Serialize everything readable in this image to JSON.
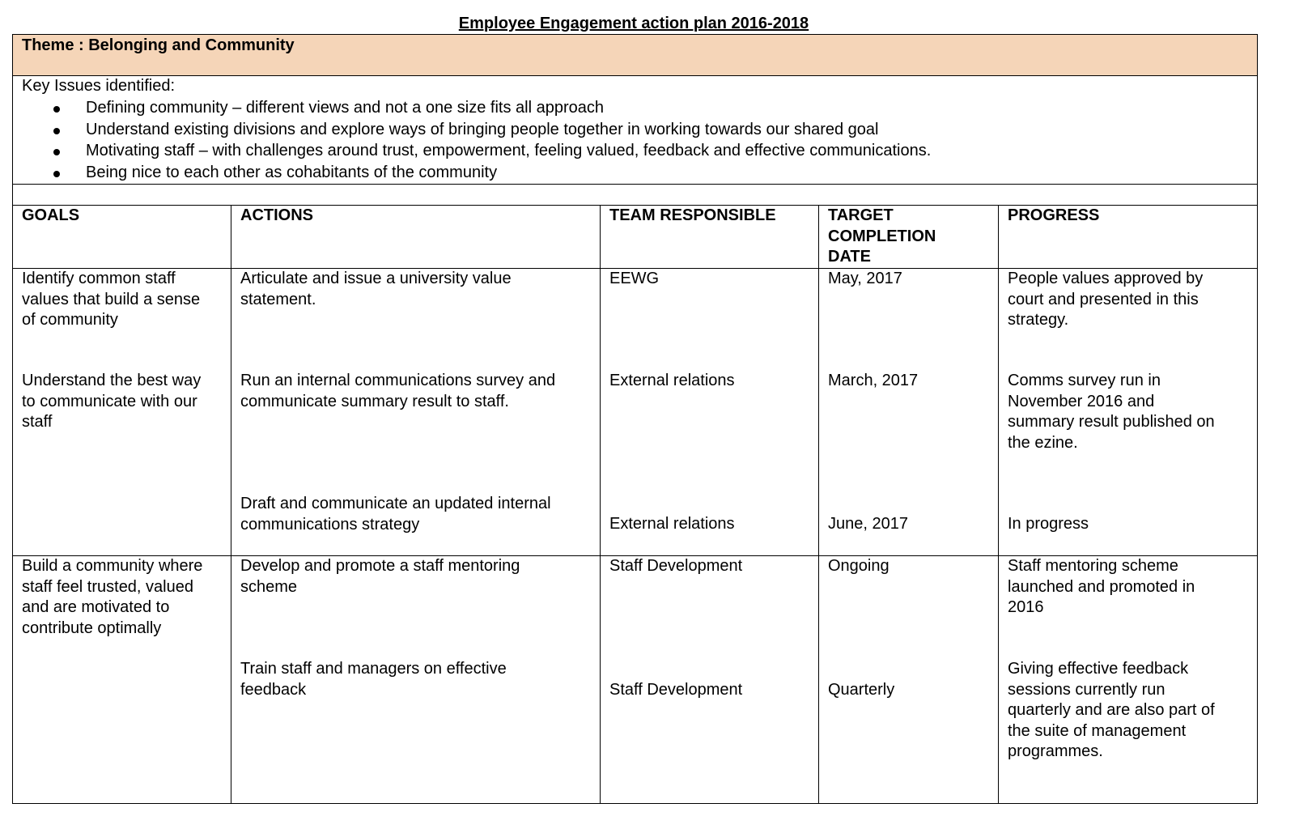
{
  "title": "Employee Engagement action plan 2016-2018",
  "theme": "Theme : Belonging and Community",
  "theme_color": "#f5d5b8",
  "key_issues": {
    "label": "Key Issues identified:",
    "items": [
      "Defining community – different views  and not a one size fits all approach",
      "Understand existing divisions and explore ways of bringing people together in working towards our shared goal",
      "Motivating staff – with challenges around trust, empowerment, feeling valued, feedback and effective communications.",
      "Being nice to each other as cohabitants of the community"
    ]
  },
  "headers": [
    "GOALS",
    "ACTIONS",
    "TEAM RESPONSIBLE",
    "TARGET\nCOMPLETION\nDATE",
    "PROGRESS"
  ],
  "goals": [
    "Identify common staff\nvalues that build a sense\nof community",
    "Understand the best way\nto communicate with our\nstaff",
    "Build a community where\nstaff feel trusted, valued\nand are motivated to\ncontribute optimally"
  ],
  "actions": [
    {
      "action": "Articulate and issue a university value\nstatement.",
      "team": "EEWG",
      "date": "May,  2017",
      "progress": "People values approved by\ncourt and presented in this\nstrategy."
    },
    {
      "action": "Run an internal communications survey and\ncommunicate summary result to staff.",
      "team": "External relations",
      "date": "March, 2017",
      "progress": "Comms survey run in\nNovember 2016 and\nsummary result published on\nthe ezine."
    },
    {
      "action": "Draft and communicate an updated internal\ncommunications strategy",
      "team": "External relations",
      "date": "June, 2017",
      "progress": "In progress"
    },
    {
      "action": "Develop and promote a staff mentoring\nscheme",
      "team": "Staff Development",
      "date": "Ongoing",
      "progress": "Staff mentoring scheme\nlaunched and promoted in\n2016"
    },
    {
      "action": "Train staff and managers on effective\nfeedback",
      "team": "Staff Development",
      "date": "Quarterly",
      "progress": "Giving effective feedback\nsessions currently run\nquarterly and are also part of\nthe suite of management\nprogrammes."
    }
  ]
}
